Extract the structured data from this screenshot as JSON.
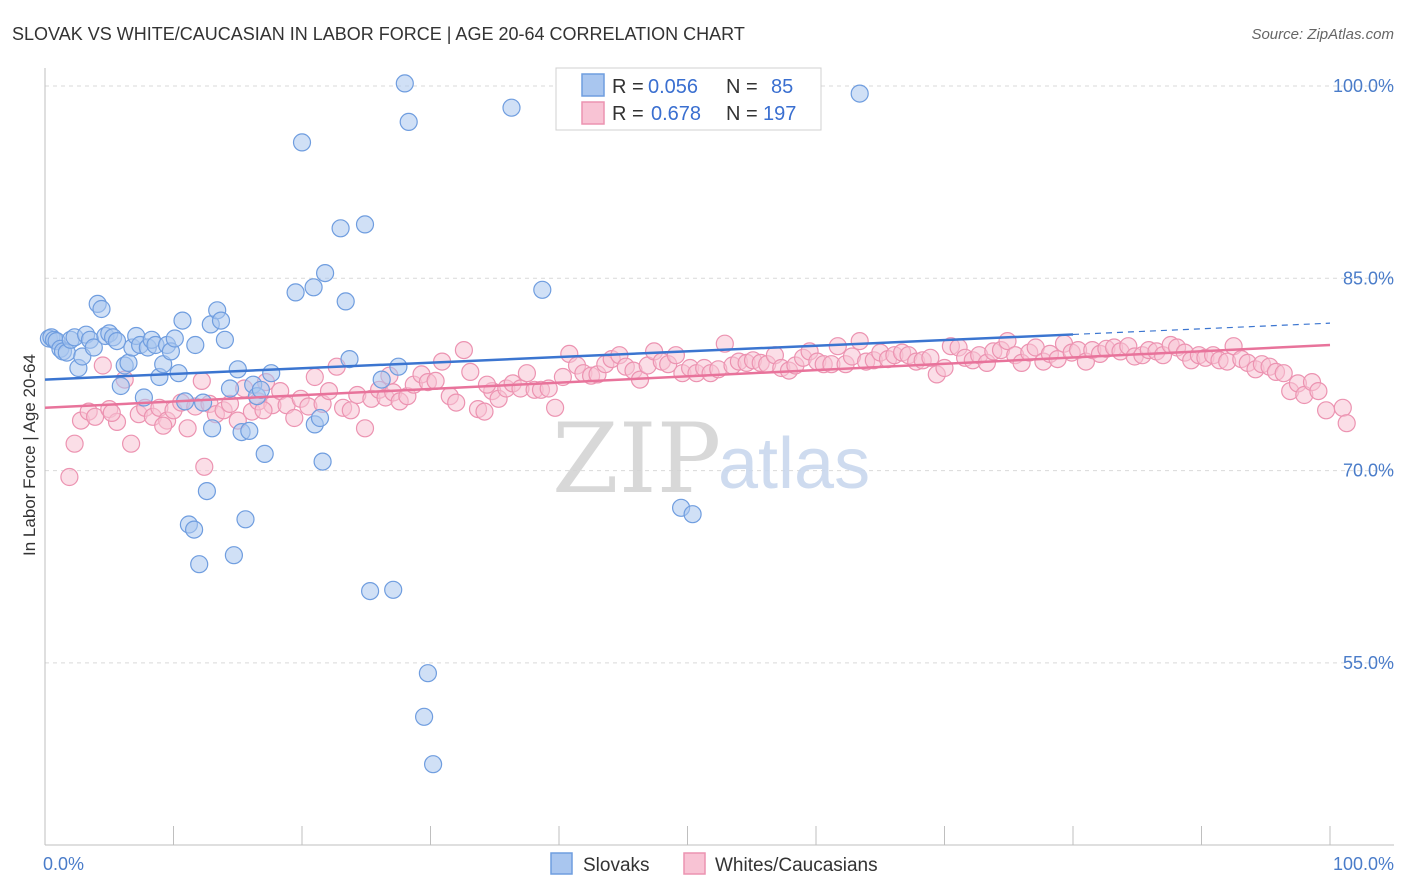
{
  "header": {
    "title": "SLOVAK VS WHITE/CAUCASIAN IN LABOR FORCE | AGE 20-64 CORRELATION CHART",
    "source": "Source: ZipAtlas.com"
  },
  "watermark": {
    "zip": "ZIP",
    "atlas": "atlas"
  },
  "colors": {
    "blue_fill": "#a9c6ef",
    "blue_stroke": "#6f9ddf",
    "blue_line": "#3b75d0",
    "pink_fill": "#f8c3d4",
    "pink_stroke": "#ec93b1",
    "pink_line": "#e8739b",
    "grid": "#d9d9d9",
    "tick_text": "#4a7cc9"
  },
  "stats_legend": {
    "r_label": "R =",
    "n_label": "N =",
    "rows": [
      {
        "r": "0.056",
        "n": "85"
      },
      {
        "r": "0.678",
        "n": "197"
      }
    ]
  },
  "chart_data": {
    "type": "scatter",
    "title": "SLOVAK VS WHITE/CAUCASIAN IN LABOR FORCE | AGE 20-64 CORRELATION CHART",
    "xlabel": "",
    "ylabel": "In Labor Force | Age 20-64",
    "xlim": [
      0,
      100
    ],
    "ylim": [
      40.8,
      101.4
    ],
    "x_tick_labels": [
      {
        "value": 0,
        "label": "0.0%"
      },
      {
        "value": 100,
        "label": "100.0%"
      }
    ],
    "y_tick_labels": [
      {
        "value": 55,
        "label": "55.0%"
      },
      {
        "value": 70,
        "label": "70.0%"
      },
      {
        "value": 85,
        "label": "85.0%"
      },
      {
        "value": 100,
        "label": "100.0%"
      }
    ],
    "legend_position": "bottom-center",
    "series": [
      {
        "name": "Slovaks",
        "r": 0.056,
        "n": 85,
        "trend": {
          "x0": 0,
          "y0": 77.1,
          "x1": 100,
          "y1": 81.5,
          "solid_until_x": 80
        },
        "points": [
          [
            0.3,
            80.3
          ],
          [
            0.5,
            80.4
          ],
          [
            0.7,
            80.2
          ],
          [
            0.9,
            80.1
          ],
          [
            1.2,
            79.5
          ],
          [
            1.4,
            79.3
          ],
          [
            1.7,
            79.2
          ],
          [
            2.0,
            80.2
          ],
          [
            2.3,
            80.4
          ],
          [
            2.6,
            78.0
          ],
          [
            2.9,
            78.9
          ],
          [
            3.2,
            80.6
          ],
          [
            3.5,
            80.2
          ],
          [
            3.8,
            79.6
          ],
          [
            4.1,
            83.0
          ],
          [
            4.4,
            82.6
          ],
          [
            4.7,
            80.5
          ],
          [
            5.0,
            80.7
          ],
          [
            5.3,
            80.4
          ],
          [
            5.6,
            80.1
          ],
          [
            5.9,
            76.6
          ],
          [
            6.2,
            78.2
          ],
          [
            6.5,
            78.4
          ],
          [
            6.8,
            79.6
          ],
          [
            7.1,
            80.5
          ],
          [
            7.4,
            79.8
          ],
          [
            7.7,
            75.7
          ],
          [
            8.0,
            79.6
          ],
          [
            8.3,
            80.2
          ],
          [
            8.6,
            79.8
          ],
          [
            8.9,
            77.3
          ],
          [
            9.2,
            78.3
          ],
          [
            9.5,
            79.8
          ],
          [
            9.8,
            79.3
          ],
          [
            10.1,
            80.3
          ],
          [
            10.4,
            77.6
          ],
          [
            10.7,
            81.7
          ],
          [
            10.9,
            75.4
          ],
          [
            11.2,
            65.8
          ],
          [
            11.6,
            65.4
          ],
          [
            11.7,
            79.8
          ],
          [
            12.0,
            62.7
          ],
          [
            12.3,
            75.3
          ],
          [
            12.6,
            68.4
          ],
          [
            12.9,
            81.4
          ],
          [
            13.0,
            73.3
          ],
          [
            13.4,
            82.5
          ],
          [
            13.7,
            81.7
          ],
          [
            14.0,
            80.2
          ],
          [
            14.4,
            76.4
          ],
          [
            14.7,
            63.4
          ],
          [
            15.0,
            77.9
          ],
          [
            15.3,
            73.0
          ],
          [
            15.6,
            66.2
          ],
          [
            15.9,
            73.1
          ],
          [
            16.2,
            76.7
          ],
          [
            16.5,
            75.8
          ],
          [
            16.8,
            76.3
          ],
          [
            17.1,
            71.3
          ],
          [
            17.6,
            77.6
          ],
          [
            20.0,
            95.6
          ],
          [
            19.5,
            83.9
          ],
          [
            20.9,
            84.3
          ],
          [
            21.0,
            73.6
          ],
          [
            21.4,
            74.1
          ],
          [
            21.6,
            70.7
          ],
          [
            21.8,
            85.4
          ],
          [
            23.0,
            88.9
          ],
          [
            23.4,
            83.2
          ],
          [
            23.7,
            78.7
          ],
          [
            24.9,
            89.2
          ],
          [
            25.3,
            60.6
          ],
          [
            26.2,
            77.1
          ],
          [
            27.1,
            60.7
          ],
          [
            27.5,
            78.1
          ],
          [
            28.0,
            100.2
          ],
          [
            28.3,
            97.2
          ],
          [
            29.5,
            50.8
          ],
          [
            29.8,
            54.2
          ],
          [
            30.2,
            47.1
          ],
          [
            36.3,
            98.3
          ],
          [
            38.7,
            84.1
          ],
          [
            49.5,
            67.1
          ],
          [
            50.4,
            66.6
          ],
          [
            63.4,
            99.4
          ]
        ]
      },
      {
        "name": "Whites/Caucasians",
        "r": 0.678,
        "n": 197,
        "trend": {
          "x0": 0,
          "y0": 74.9,
          "x1": 100,
          "y1": 79.8
        },
        "points": [
          [
            1.9,
            69.5
          ],
          [
            2.3,
            72.1
          ],
          [
            2.8,
            73.9
          ],
          [
            3.4,
            74.6
          ],
          [
            3.9,
            74.2
          ],
          [
            4.5,
            78.2
          ],
          [
            5.0,
            74.8
          ],
          [
            5.6,
            73.8
          ],
          [
            6.2,
            77.1
          ],
          [
            6.7,
            72.1
          ],
          [
            7.3,
            74.4
          ],
          [
            7.8,
            74.9
          ],
          [
            8.4,
            74.2
          ],
          [
            8.9,
            74.9
          ],
          [
            9.5,
            73.9
          ],
          [
            10.0,
            74.7
          ],
          [
            10.6,
            75.3
          ],
          [
            11.1,
            73.3
          ],
          [
            11.7,
            75.0
          ],
          [
            12.2,
            77.0
          ],
          [
            12.4,
            70.3
          ],
          [
            12.8,
            75.2
          ],
          [
            13.3,
            74.4
          ],
          [
            13.9,
            74.7
          ],
          [
            14.4,
            75.2
          ],
          [
            15.0,
            73.9
          ],
          [
            15.5,
            76.4
          ],
          [
            16.1,
            74.6
          ],
          [
            16.6,
            75.4
          ],
          [
            17.2,
            76.9
          ],
          [
            17.7,
            75.1
          ],
          [
            18.3,
            76.2
          ],
          [
            18.8,
            75.1
          ],
          [
            19.4,
            74.1
          ],
          [
            19.9,
            75.6
          ],
          [
            20.5,
            75.0
          ],
          [
            21.0,
            77.3
          ],
          [
            21.6,
            75.2
          ],
          [
            22.1,
            76.2
          ],
          [
            22.7,
            78.1
          ],
          [
            23.2,
            74.9
          ],
          [
            23.8,
            74.7
          ],
          [
            24.3,
            75.9
          ],
          [
            24.9,
            73.3
          ],
          [
            25.4,
            75.6
          ],
          [
            26.0,
            76.3
          ],
          [
            26.5,
            75.7
          ],
          [
            27.1,
            76.1
          ],
          [
            27.6,
            75.4
          ],
          [
            28.2,
            75.8
          ],
          [
            28.7,
            76.7
          ],
          [
            29.3,
            77.5
          ],
          [
            29.8,
            76.9
          ],
          [
            30.4,
            77.0
          ],
          [
            30.9,
            78.5
          ],
          [
            31.5,
            75.8
          ],
          [
            32.0,
            75.3
          ],
          [
            32.6,
            79.4
          ],
          [
            33.1,
            77.7
          ],
          [
            33.7,
            74.8
          ],
          [
            34.2,
            74.6
          ],
          [
            34.8,
            76.2
          ],
          [
            35.3,
            75.6
          ],
          [
            35.9,
            76.4
          ],
          [
            36.4,
            76.8
          ],
          [
            37.0,
            76.4
          ],
          [
            37.5,
            77.6
          ],
          [
            38.1,
            76.3
          ],
          [
            38.6,
            76.3
          ],
          [
            39.2,
            76.4
          ],
          [
            39.7,
            74.9
          ],
          [
            40.3,
            77.3
          ],
          [
            40.8,
            79.1
          ],
          [
            41.4,
            78.2
          ],
          [
            41.9,
            77.6
          ],
          [
            42.5,
            77.4
          ],
          [
            43.0,
            77.5
          ],
          [
            43.6,
            78.3
          ],
          [
            44.1,
            78.7
          ],
          [
            44.7,
            79.0
          ],
          [
            45.2,
            78.1
          ],
          [
            45.8,
            77.8
          ],
          [
            46.3,
            77.1
          ],
          [
            46.9,
            78.2
          ],
          [
            47.4,
            79.3
          ],
          [
            48.0,
            78.5
          ],
          [
            48.5,
            78.3
          ],
          [
            49.1,
            79.0
          ],
          [
            49.6,
            77.6
          ],
          [
            50.2,
            78.0
          ],
          [
            50.7,
            77.6
          ],
          [
            51.3,
            78.0
          ],
          [
            51.8,
            77.6
          ],
          [
            52.4,
            77.9
          ],
          [
            52.9,
            79.9
          ],
          [
            53.5,
            78.2
          ],
          [
            54.0,
            78.5
          ],
          [
            54.6,
            78.4
          ],
          [
            55.1,
            78.6
          ],
          [
            55.7,
            78.4
          ],
          [
            56.2,
            78.3
          ],
          [
            56.8,
            79.0
          ],
          [
            57.3,
            78.0
          ],
          [
            57.9,
            77.8
          ],
          [
            58.4,
            78.2
          ],
          [
            59.0,
            78.8
          ],
          [
            59.5,
            79.3
          ],
          [
            60.1,
            78.5
          ],
          [
            60.6,
            78.3
          ],
          [
            61.2,
            78.3
          ],
          [
            61.7,
            79.7
          ],
          [
            62.3,
            78.3
          ],
          [
            62.8,
            78.9
          ],
          [
            63.4,
            80.1
          ],
          [
            63.9,
            78.5
          ],
          [
            64.5,
            78.6
          ],
          [
            65.0,
            79.2
          ],
          [
            65.6,
            78.7
          ],
          [
            66.1,
            79.0
          ],
          [
            66.7,
            79.2
          ],
          [
            67.2,
            79.0
          ],
          [
            67.8,
            78.5
          ],
          [
            68.3,
            78.6
          ],
          [
            68.9,
            78.8
          ],
          [
            69.4,
            77.5
          ],
          [
            70.0,
            78.0
          ],
          [
            70.5,
            79.7
          ],
          [
            71.1,
            79.6
          ],
          [
            71.6,
            78.8
          ],
          [
            72.2,
            78.6
          ],
          [
            72.7,
            79.0
          ],
          [
            73.3,
            78.4
          ],
          [
            73.8,
            79.3
          ],
          [
            74.4,
            79.4
          ],
          [
            74.9,
            80.1
          ],
          [
            75.5,
            79.0
          ],
          [
            76.0,
            78.4
          ],
          [
            76.6,
            79.2
          ],
          [
            77.1,
            79.6
          ],
          [
            77.7,
            78.5
          ],
          [
            78.2,
            79.1
          ],
          [
            78.8,
            78.7
          ],
          [
            79.3,
            79.9
          ],
          [
            79.9,
            79.2
          ],
          [
            80.4,
            79.4
          ],
          [
            81.0,
            78.5
          ],
          [
            81.5,
            79.4
          ],
          [
            82.1,
            79.1
          ],
          [
            82.6,
            79.5
          ],
          [
            83.2,
            79.6
          ],
          [
            83.7,
            79.3
          ],
          [
            84.3,
            79.7
          ],
          [
            84.8,
            78.9
          ],
          [
            85.4,
            79.0
          ],
          [
            85.9,
            79.4
          ],
          [
            86.5,
            79.3
          ],
          [
            87.0,
            79.0
          ],
          [
            87.6,
            79.8
          ],
          [
            88.1,
            79.6
          ],
          [
            88.7,
            79.2
          ],
          [
            89.2,
            78.6
          ],
          [
            89.8,
            79.0
          ],
          [
            90.3,
            78.8
          ],
          [
            90.9,
            79.0
          ],
          [
            91.4,
            78.6
          ],
          [
            92.0,
            78.5
          ],
          [
            92.5,
            79.7
          ],
          [
            93.1,
            78.7
          ],
          [
            93.6,
            78.4
          ],
          [
            94.2,
            77.9
          ],
          [
            94.7,
            78.3
          ],
          [
            95.3,
            78.1
          ],
          [
            95.8,
            77.7
          ],
          [
            96.4,
            77.6
          ],
          [
            96.9,
            76.2
          ],
          [
            97.5,
            76.8
          ],
          [
            98.0,
            75.9
          ],
          [
            98.6,
            76.9
          ],
          [
            99.1,
            76.2
          ],
          [
            99.7,
            74.7
          ],
          [
            101.0,
            74.9
          ],
          [
            101.3,
            73.7
          ],
          [
            5.2,
            74.5
          ],
          [
            9.2,
            73.5
          ],
          [
            17.0,
            74.7
          ],
          [
            26.8,
            77.4
          ],
          [
            34.4,
            76.7
          ]
        ]
      }
    ]
  },
  "bottom_legend": {
    "items": [
      {
        "label": "Slovaks"
      },
      {
        "label": "Whites/Caucasians"
      }
    ]
  }
}
